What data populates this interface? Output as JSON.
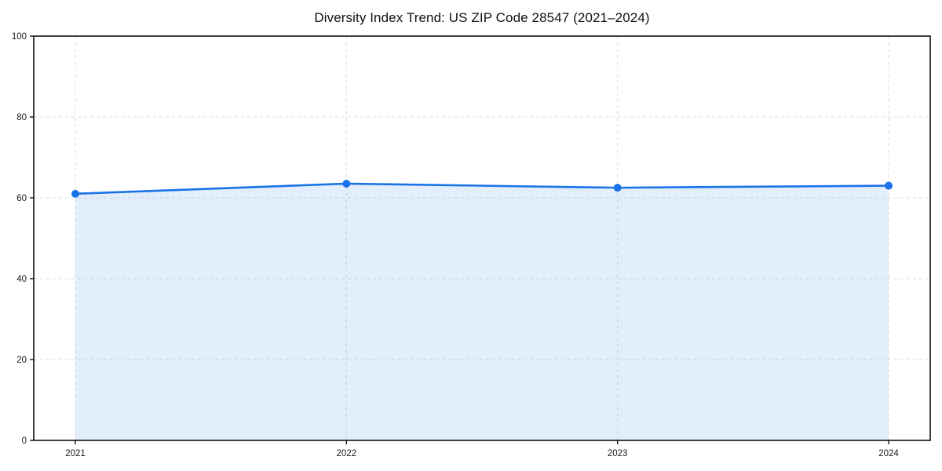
{
  "title": "Diversity Index Trend: US ZIP Code 28547 (2021–2024)",
  "colors": {
    "line": "#1a73e8",
    "fill": "#1a73e8",
    "fill_opacity": "0.12",
    "grid": "#dedede",
    "spine": "#111111",
    "tick_text": "#1a1a1a",
    "background": "#ffffff"
  },
  "chart_data": {
    "type": "area",
    "title": "Diversity Index Trend: US ZIP Code 28547 (2021–2024)",
    "categories": [
      "2021",
      "2022",
      "2023",
      "2024"
    ],
    "values": [
      61,
      63.5,
      62.5,
      63
    ],
    "series": [
      {
        "name": "Diversity Index",
        "values": [
          61,
          63.5,
          62.5,
          63
        ]
      }
    ],
    "xlabel": "",
    "ylabel": "",
    "ylim": [
      0,
      100
    ],
    "yticks": [
      0,
      20,
      40,
      60,
      80,
      100
    ],
    "grid": true,
    "grid_style": "dashed",
    "legend": false,
    "marker": "circle",
    "markers_shown": true
  }
}
